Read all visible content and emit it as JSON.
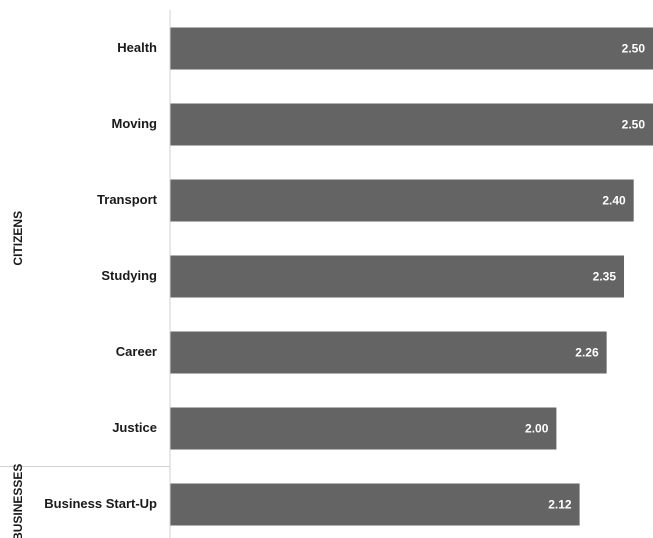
{
  "chart_data": {
    "type": "bar",
    "orientation": "horizontal",
    "title": "",
    "xlabel": "",
    "ylabel": "",
    "xlim": [
      0,
      2.5
    ],
    "grid": false,
    "legend": "none",
    "bar_color": "#646464",
    "value_label_color": "#ffffff",
    "groups": [
      {
        "name": "CITIZENS",
        "categories": [
          "Health",
          "Moving",
          "Transport",
          "Studying",
          "Career",
          "Justice"
        ],
        "values": [
          2.5,
          2.5,
          2.4,
          2.35,
          2.26,
          2.0
        ],
        "value_labels": [
          "2.50",
          "2.50",
          "2.40",
          "2.35",
          "2.26",
          "2.00"
        ]
      },
      {
        "name": "BUSINESSES",
        "categories": [
          "Business Start-Up"
        ],
        "values": [
          2.12
        ],
        "value_labels": [
          "2.12"
        ]
      }
    ]
  }
}
